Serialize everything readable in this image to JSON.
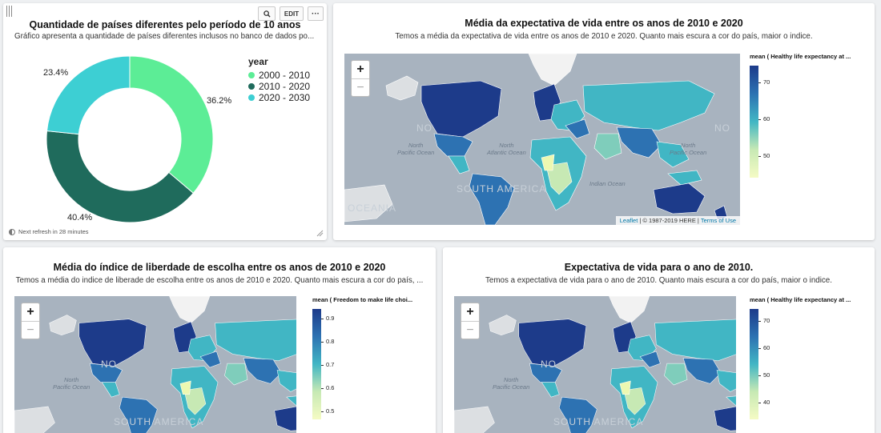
{
  "card1": {
    "title": "Quantidade de países diferentes pelo período de 10 anos",
    "subtitle": "Gráfico apresenta a quantidade de países diferentes inclusos no banco de dados po...",
    "toolbar": {
      "zoom_icon": "zoom-icon",
      "edit_label": "EDIT",
      "more_label": "···"
    },
    "refresh_text": "Next refresh in 28 minutes",
    "chart_data": {
      "type": "pie",
      "legend_title": "year",
      "legend_position": "right",
      "labels": [
        "2000 - 2010",
        "2010 - 2020",
        "2020 - 2030"
      ],
      "values": [
        36.2,
        40.4,
        23.4
      ],
      "value_labels": [
        "36.2%",
        "40.4%",
        "23.4%"
      ],
      "colors": [
        "#5ced96",
        "#1f6b5c",
        "#3dcfd3"
      ]
    }
  },
  "card2": {
    "title": "Média da expectativa de vida entre os anos de 2010 e 2020",
    "subtitle": "Temos a média da expectativa de vida entre os anos de 2010 e 2020. Quanto mais escura a cor do país, maior o indice.",
    "legend_title": "mean ( Healthy life expectancy at ...",
    "legend_ticks": [
      "70",
      "60",
      "50"
    ],
    "attribution": {
      "leaflet": "Leaflet",
      "here": "| © 1987-2019 HERE |",
      "terms": "Terms of Use"
    },
    "map_labels": {
      "pacific1": "North\nPacific Ocean",
      "atlantic": "North\nAtlantic Ocean",
      "indian": "Indian Ocean",
      "pacific2": "North\nPacific Ocean",
      "oceania": "OCEANIA",
      "south_america": "SOUTH AMERICA",
      "no1": "NO",
      "no2": "NO"
    }
  },
  "card3": {
    "title": "Média do índice de liberdade de escolha entre os anos de 2010 e 2020",
    "subtitle": "Temos a média do indice de liberade de escolha entre os anos de 2010 e 2020. Quanto mais escura a cor do país, ...",
    "legend_title": "mean ( Freedom to make life choi...",
    "legend_ticks": [
      "0.9",
      "0.8",
      "0.7",
      "0.6",
      "0.5"
    ],
    "map_labels": {
      "pacific1": "North\nPacific Ocean",
      "south_america": "SOUTH AMERICA",
      "no1": "NO"
    }
  },
  "card4": {
    "title": "Expectativa de vida para o ano de 2010.",
    "subtitle": "Temos a expectativa de vida para o ano de 2010. Quanto mais escura a cor do país, maior o indice.",
    "legend_title": "mean ( Healthy life expectancy at ...",
    "legend_ticks": [
      "70",
      "60",
      "50",
      "40"
    ],
    "map_labels": {
      "pacific1": "North\nPacific Ocean",
      "south_america": "SOUTH AMERICA",
      "no1": "NO"
    }
  },
  "zoom": {
    "in": "+",
    "out": "−"
  },
  "colors": {
    "dark_blue": "#1d3b8a",
    "mid_blue": "#2d72b2",
    "teal": "#41b6c4",
    "light_green": "#c7e9b4",
    "pale": "#edf8b1",
    "ocean": "#a8b3bf",
    "land_gray": "#dcdcdc"
  }
}
